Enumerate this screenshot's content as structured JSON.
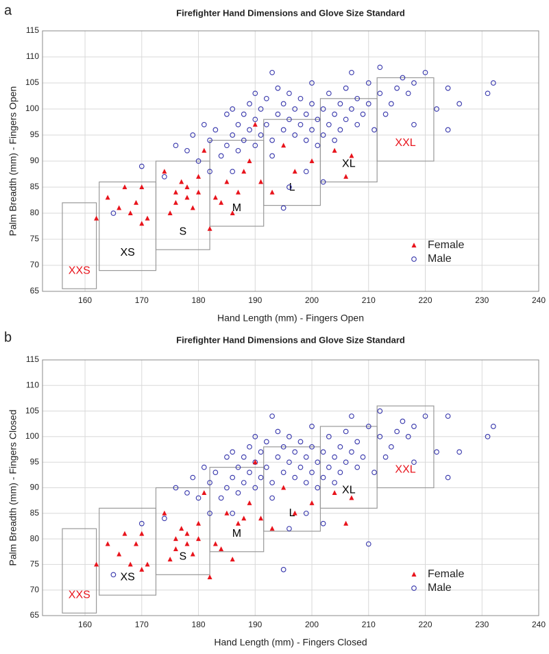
{
  "chart_data": [
    {
      "type": "scatter",
      "panel_label": "a",
      "title": "Firefighter Hand Dimensions and Glove Size Standard",
      "x_label": "Hand Length (mm) - Fingers  Open",
      "y_label": "Palm Breadth (mm) - Fingers  Open",
      "xlim": [
        152.5,
        240
      ],
      "ylim": [
        65,
        115
      ],
      "xticks": [
        160,
        170,
        180,
        190,
        200,
        210,
        220,
        230,
        240
      ],
      "yticks": [
        65,
        70,
        75,
        80,
        85,
        90,
        95,
        100,
        105,
        110,
        115
      ],
      "grid": true,
      "legend": "lower right",
      "series": [
        {
          "name": "Female",
          "color": "#e8141c",
          "marker": "triangle",
          "x": [
            162,
            164,
            166,
            167,
            168,
            169,
            170,
            170,
            171,
            174,
            175,
            176,
            176,
            177,
            178,
            178,
            179,
            180,
            180,
            181,
            182,
            183,
            184,
            185,
            186,
            187,
            188,
            189,
            190,
            191,
            193,
            195,
            197,
            200,
            204,
            206,
            207
          ],
          "values": [
            79,
            83,
            81,
            85,
            80,
            82,
            85,
            78,
            79,
            88,
            80,
            84,
            82,
            86,
            85,
            83,
            81,
            87,
            84,
            92,
            77,
            83,
            82,
            86,
            80,
            84,
            88,
            90,
            97,
            86,
            84,
            93,
            88,
            90,
            92,
            87,
            91
          ]
        },
        {
          "name": "Male",
          "color": "#3333aa",
          "marker": "circle",
          "x": [
            165,
            170,
            174,
            176,
            178,
            179,
            180,
            181,
            182,
            183,
            184,
            185,
            185,
            186,
            186,
            187,
            187,
            188,
            188,
            189,
            189,
            190,
            190,
            190,
            191,
            191,
            192,
            192,
            193,
            193,
            194,
            194,
            195,
            195,
            195,
            196,
            196,
            197,
            197,
            198,
            198,
            199,
            199,
            200,
            200,
            200,
            201,
            201,
            202,
            202,
            203,
            203,
            204,
            204,
            205,
            205,
            206,
            206,
            207,
            207,
            208,
            208,
            209,
            210,
            210,
            211,
            212,
            212,
            213,
            214,
            215,
            216,
            217,
            218,
            218,
            220,
            222,
            224,
            224,
            226,
            231,
            232,
            193,
            196,
            199,
            202,
            186,
            182
          ],
          "values": [
            80,
            89,
            87,
            93,
            92,
            95,
            90,
            97,
            94,
            96,
            91,
            99,
            93,
            95,
            100,
            92,
            97,
            94,
            99,
            96,
            101,
            93,
            98,
            103,
            95,
            100,
            97,
            102,
            94,
            107,
            99,
            104,
            96,
            101,
            81,
            98,
            103,
            95,
            100,
            97,
            102,
            94,
            99,
            96,
            101,
            105,
            93,
            98,
            95,
            100,
            97,
            103,
            94,
            99,
            96,
            101,
            98,
            104,
            100,
            107,
            102,
            97,
            99,
            101,
            105,
            96,
            103,
            108,
            99,
            101,
            104,
            106,
            103,
            105,
            97,
            107,
            100,
            104,
            96,
            101,
            103,
            105,
            91,
            85,
            88,
            86,
            88,
            88
          ]
        }
      ],
      "regions": [
        {
          "label": "XXS",
          "color": "#e8141c",
          "x": [
            156,
            162
          ],
          "y": [
            65.5,
            82
          ]
        },
        {
          "label": "XS",
          "color": "#000000",
          "x": [
            162.5,
            172.5
          ],
          "y": [
            69,
            86
          ]
        },
        {
          "label": "S",
          "color": "#000000",
          "x": [
            172.5,
            182
          ],
          "y": [
            73,
            90
          ]
        },
        {
          "label": "M",
          "color": "#000000",
          "x": [
            182,
            191.5
          ],
          "y": [
            77.5,
            94
          ]
        },
        {
          "label": "L",
          "color": "#000000",
          "x": [
            191.5,
            201.5
          ],
          "y": [
            81.5,
            98
          ]
        },
        {
          "label": "XL",
          "color": "#000000",
          "x": [
            201.5,
            211.5
          ],
          "y": [
            86,
            102
          ]
        },
        {
          "label": "XXL",
          "color": "#e8141c",
          "x": [
            211.5,
            221.5
          ],
          "y": [
            90,
            106
          ]
        }
      ]
    },
    {
      "type": "scatter",
      "panel_label": "b",
      "title": "Firefighter Hand Dimensions and Glove Size Standard",
      "x_label": "Hand Length (mm) - Fingers Closed",
      "y_label": "Palm Breadth (mm) - Fingers Closed",
      "xlim": [
        152.5,
        240
      ],
      "ylim": [
        65,
        115
      ],
      "xticks": [
        160,
        170,
        180,
        190,
        200,
        210,
        220,
        230,
        240
      ],
      "yticks": [
        65,
        70,
        75,
        80,
        85,
        90,
        95,
        100,
        105,
        110,
        115
      ],
      "grid": true,
      "legend": "lower right",
      "series": [
        {
          "name": "Female",
          "color": "#e8141c",
          "marker": "triangle",
          "x": [
            162,
            164,
            166,
            167,
            168,
            169,
            170,
            170,
            171,
            174,
            175,
            176,
            176,
            177,
            178,
            178,
            179,
            180,
            180,
            181,
            182,
            183,
            184,
            185,
            186,
            187,
            188,
            189,
            190,
            191,
            193,
            195,
            197,
            200,
            204,
            206,
            207
          ],
          "values": [
            75,
            79,
            77,
            81,
            75,
            79,
            81,
            74,
            75,
            85,
            76,
            80,
            78,
            82,
            81,
            79,
            77,
            83,
            80,
            89,
            72.5,
            79,
            78,
            85,
            76,
            83,
            84,
            87,
            95,
            84,
            82,
            90,
            85,
            87,
            89,
            83,
            88
          ]
        },
        {
          "name": "Male",
          "color": "#3333aa",
          "marker": "circle",
          "x": [
            165,
            170,
            174,
            176,
            178,
            179,
            180,
            181,
            182,
            183,
            184,
            185,
            185,
            186,
            186,
            187,
            187,
            188,
            188,
            189,
            189,
            190,
            190,
            190,
            191,
            191,
            192,
            192,
            193,
            193,
            194,
            194,
            195,
            195,
            195,
            196,
            196,
            197,
            197,
            198,
            198,
            199,
            199,
            200,
            200,
            200,
            201,
            201,
            202,
            202,
            203,
            203,
            204,
            204,
            205,
            205,
            206,
            206,
            207,
            207,
            208,
            208,
            209,
            210,
            210,
            211,
            212,
            212,
            213,
            214,
            215,
            216,
            217,
            218,
            218,
            220,
            222,
            224,
            224,
            226,
            231,
            232,
            193,
            196,
            199,
            202,
            186,
            182
          ],
          "values": [
            73,
            83,
            84,
            90,
            89,
            92,
            88,
            94,
            91,
            93,
            88,
            96,
            90,
            92,
            97,
            89,
            94,
            91,
            96,
            93,
            98,
            90,
            95,
            100,
            92,
            97,
            94,
            99,
            91,
            104,
            96,
            101,
            93,
            98,
            74,
            95,
            100,
            92,
            97,
            94,
            99,
            91,
            96,
            93,
            98,
            102,
            90,
            95,
            92,
            97,
            94,
            100,
            91,
            96,
            93,
            98,
            95,
            101,
            97,
            104,
            99,
            94,
            96,
            79,
            102,
            93,
            100,
            105,
            96,
            98,
            101,
            103,
            100,
            102,
            95,
            104,
            97,
            104,
            92,
            97,
            100,
            102,
            88,
            82,
            85,
            83,
            85,
            85
          ]
        }
      ],
      "regions": [
        {
          "label": "XXS",
          "color": "#e8141c",
          "x": [
            156,
            162
          ],
          "y": [
            65.5,
            82
          ]
        },
        {
          "label": "XS",
          "color": "#000000",
          "x": [
            162.5,
            172.5
          ],
          "y": [
            69,
            86
          ]
        },
        {
          "label": "S",
          "color": "#000000",
          "x": [
            172.5,
            182
          ],
          "y": [
            73,
            90
          ]
        },
        {
          "label": "M",
          "color": "#000000",
          "x": [
            182,
            191.5
          ],
          "y": [
            77.5,
            94
          ]
        },
        {
          "label": "L",
          "color": "#000000",
          "x": [
            191.5,
            201.5
          ],
          "y": [
            81.5,
            98
          ]
        },
        {
          "label": "XL",
          "color": "#000000",
          "x": [
            201.5,
            211.5
          ],
          "y": [
            86,
            102
          ]
        },
        {
          "label": "XXL",
          "color": "#e8141c",
          "x": [
            211.5,
            221.5
          ],
          "y": [
            90,
            106
          ]
        }
      ]
    }
  ]
}
